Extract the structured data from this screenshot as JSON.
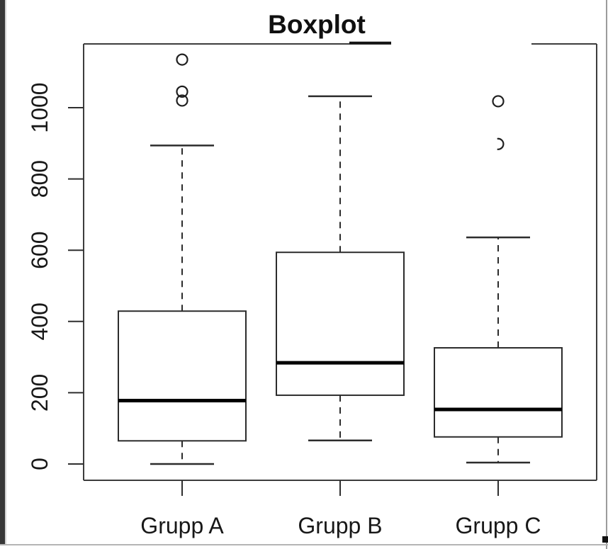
{
  "chart_data": {
    "type": "boxplot",
    "title": "Boxplot",
    "xlabel": "",
    "ylabel": "",
    "categories": [
      "Grupp A",
      "Grupp B",
      "Grupp C"
    ],
    "yticks": [
      0,
      200,
      400,
      600,
      800,
      1000
    ],
    "ylim": [
      0,
      1150
    ],
    "grid": false,
    "legend": "none",
    "ink_color": "#1a1a1a",
    "series": [
      {
        "name": "Grupp A",
        "whisker_low": 0,
        "q1": 65,
        "median": 178,
        "q3": 429,
        "whisker_high": 894,
        "outliers": [
          1020,
          1045,
          1135
        ]
      },
      {
        "name": "Grupp B",
        "whisker_low": 66,
        "q1": 193,
        "median": 284,
        "q3": 594,
        "whisker_high": 1032,
        "outliers": []
      },
      {
        "name": "Grupp C",
        "whisker_low": 4,
        "q1": 76,
        "median": 153,
        "q3": 326,
        "whisker_high": 636,
        "outliers": [
          898,
          1018
        ]
      }
    ]
  }
}
